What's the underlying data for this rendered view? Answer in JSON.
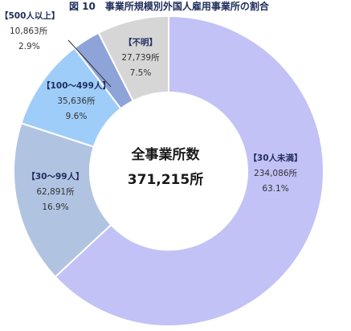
{
  "chart_data": {
    "type": "pie",
    "style": "donut",
    "title": "図 10　事業所規模別外国人雇用事業所の割合",
    "center_label": "全事業所数",
    "center_value": "371,215所",
    "start": "12 o'clock, clockwise",
    "slices": [
      {
        "label": "【30人未満】",
        "value_text": "234,086所",
        "percent_text": "63.1%",
        "value": 234086,
        "percent": 63.1,
        "color": "#c2c2f7"
      },
      {
        "label": "【30～99人】",
        "value_text": "62,891所",
        "percent_text": "16.9%",
        "value": 62891,
        "percent": 16.9,
        "color": "#b0c4e2"
      },
      {
        "label": "【100～499人】",
        "value_text": "35,636所",
        "percent_text": "9.6%",
        "value": 35636,
        "percent": 9.6,
        "color": "#9fcdf9"
      },
      {
        "label": "【500人以上】",
        "value_text": "10,863所",
        "percent_text": "2.9%",
        "value": 10863,
        "percent": 2.9,
        "color": "#8ea3d8"
      },
      {
        "label": "【不明】",
        "value_text": "27,739所",
        "percent_text": "7.5%",
        "value": 27739,
        "percent": 7.5,
        "color": "#d6d6d6"
      }
    ]
  }
}
